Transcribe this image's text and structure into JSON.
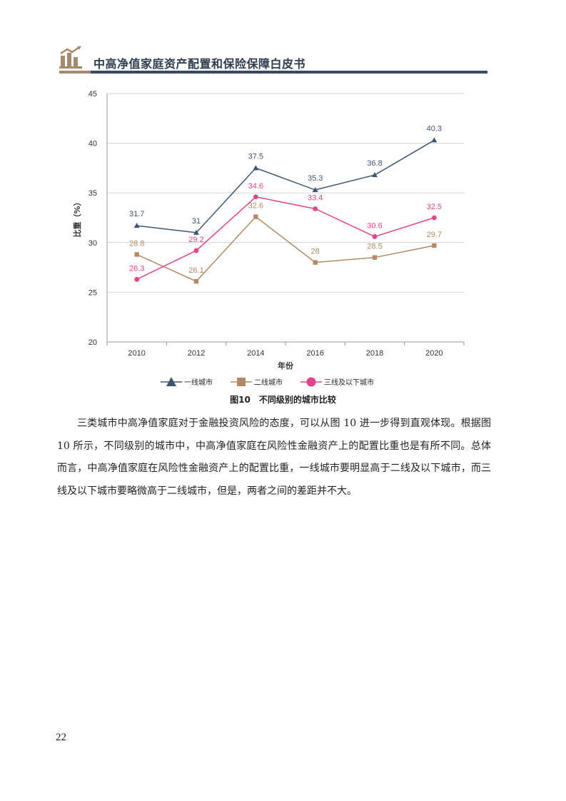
{
  "header": {
    "title": "中高净值家庭资产配置和保险保障白皮书"
  },
  "colors": {
    "tier1": "#3f5673",
    "tier2": "#b38a65",
    "tier3": "#e0468a",
    "header_brown": "#a68a6d",
    "header_navy": "#3a4a5e"
  },
  "chart_data": {
    "type": "line",
    "title": "",
    "xlabel": "年份",
    "ylabel": "比重（%）",
    "ylim": [
      20,
      45
    ],
    "yticks": [
      20,
      25,
      30,
      35,
      40,
      45
    ],
    "categories": [
      "2010",
      "2012",
      "2014",
      "2016",
      "2018",
      "2020"
    ],
    "grid": true,
    "legend_position": "bottom",
    "series": [
      {
        "name": "一线城市",
        "marker": "triangle",
        "color": "#3f5673",
        "values": [
          31.7,
          31,
          37.5,
          35.3,
          36.8,
          40.3
        ],
        "labels": [
          "31.7",
          "31",
          "37.5",
          "35.3",
          "36.8",
          "40.3"
        ]
      },
      {
        "name": "二线城市",
        "marker": "square",
        "color": "#b38a65",
        "values": [
          28.8,
          26.1,
          32.6,
          28,
          28.5,
          29.7
        ],
        "labels": [
          "28.8",
          "26.1",
          "32.6",
          "28",
          "28.5",
          "29.7"
        ]
      },
      {
        "name": "三线及以下城市",
        "marker": "circle",
        "color": "#e0468a",
        "values": [
          26.3,
          29.2,
          34.6,
          33.4,
          30.6,
          32.5
        ],
        "labels": [
          "26.3",
          "29.2",
          "34.6",
          "33.4",
          "30.6",
          "32.5"
        ]
      }
    ]
  },
  "figure": {
    "caption": "图10　不同级别的城市比较"
  },
  "body": {
    "paragraph": "三类城市中高净值家庭对于金融投资风险的态度，可以从图 10 进一步得到直观体现。根据图 10 所示，不同级别的城市中，中高净值家庭在风险性金融资产上的配置比重也是有所不同。总体而言，中高净值家庭在风险性金融资产上的配置比重，一线城市要明显高于二线及以下城市，而三线及以下城市要略微高于二线城市，但是，两者之间的差距并不大。"
  },
  "page": {
    "number": "22"
  }
}
